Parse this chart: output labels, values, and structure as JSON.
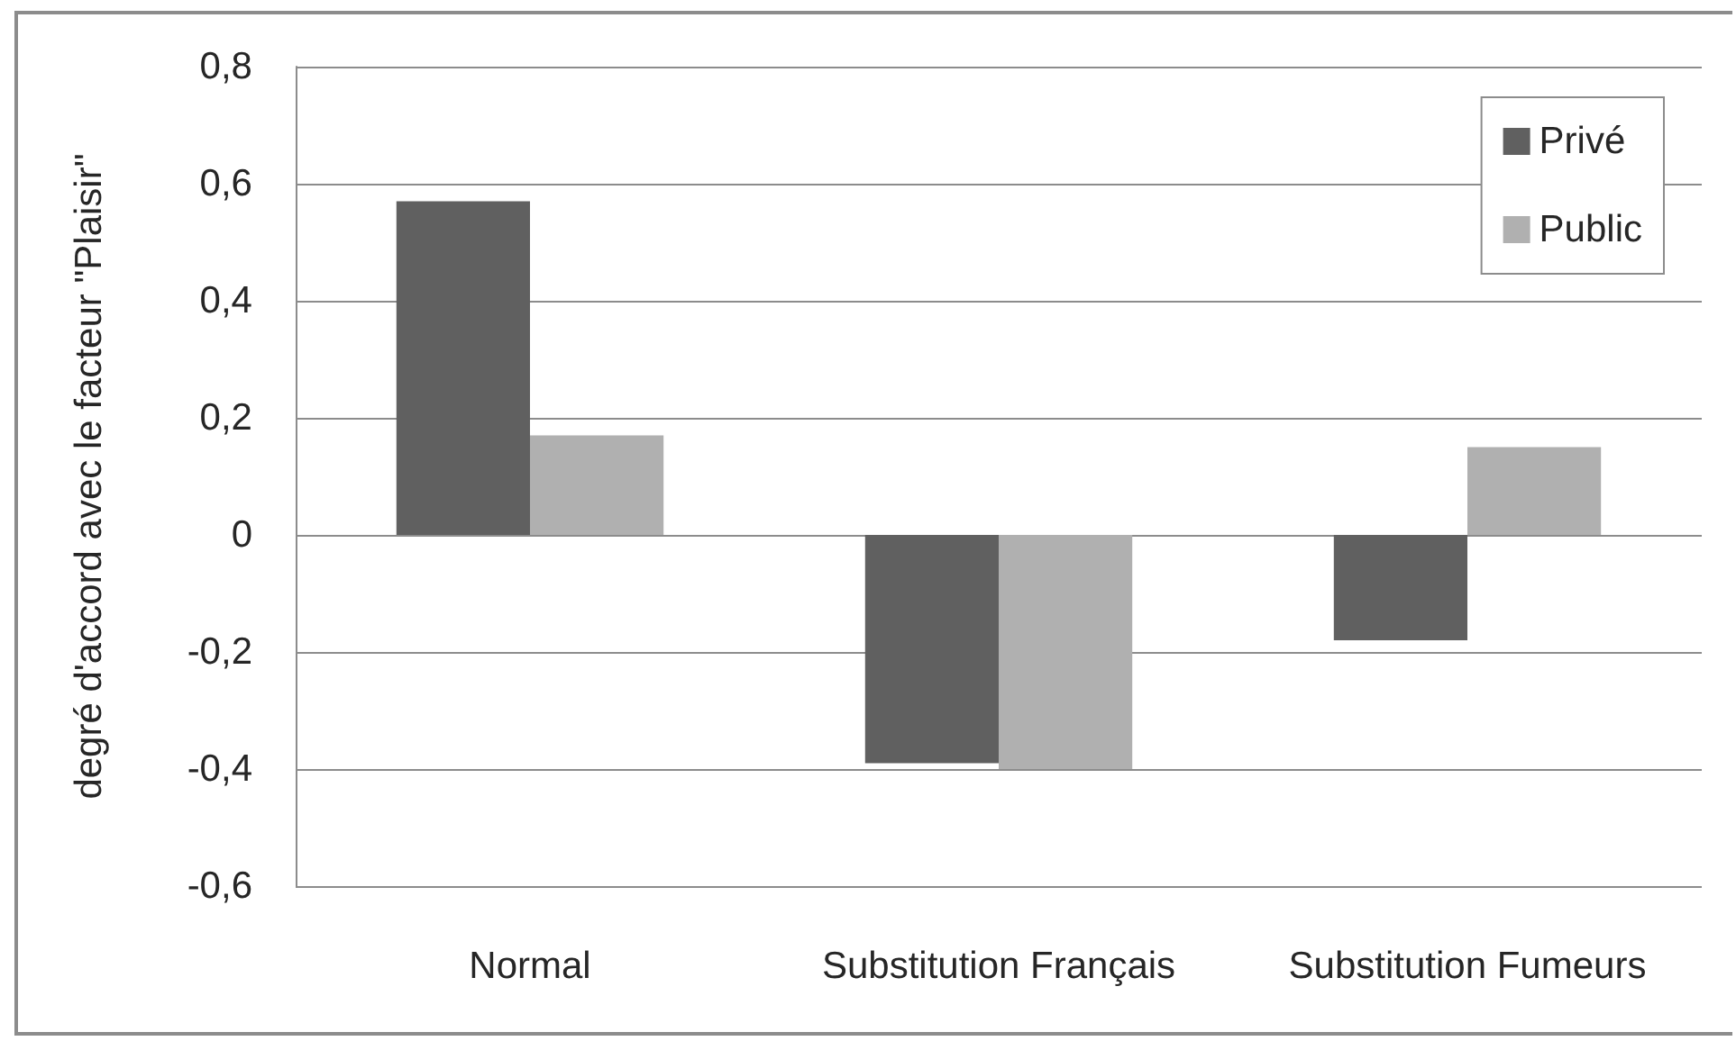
{
  "chart_data": {
    "type": "bar",
    "ylabel": "degré d'accord avec le facteur \"Plaisir\"",
    "categories": [
      "Normal",
      "Substitution Français",
      "Substitution Fumeurs"
    ],
    "series": [
      {
        "name": "Privé",
        "color": "#606060",
        "values": [
          0.57,
          -0.39,
          -0.18
        ]
      },
      {
        "name": "Public",
        "color": "#b0b0b0",
        "values": [
          0.17,
          -0.4,
          0.15
        ]
      }
    ],
    "ylim": [
      -0.6,
      0.8
    ],
    "yticks": [
      {
        "value": -0.6,
        "label": "-0,6"
      },
      {
        "value": -0.4,
        "label": "-0,4"
      },
      {
        "value": -0.2,
        "label": "-0,2"
      },
      0,
      {
        "value": 0.2,
        "label": "0,2"
      },
      {
        "value": 0.4,
        "label": "0,4"
      },
      {
        "value": 0.6,
        "label": "0,6"
      },
      {
        "value": 0.8,
        "label": "0,8"
      }
    ],
    "grid": "y",
    "legend": "top right"
  }
}
